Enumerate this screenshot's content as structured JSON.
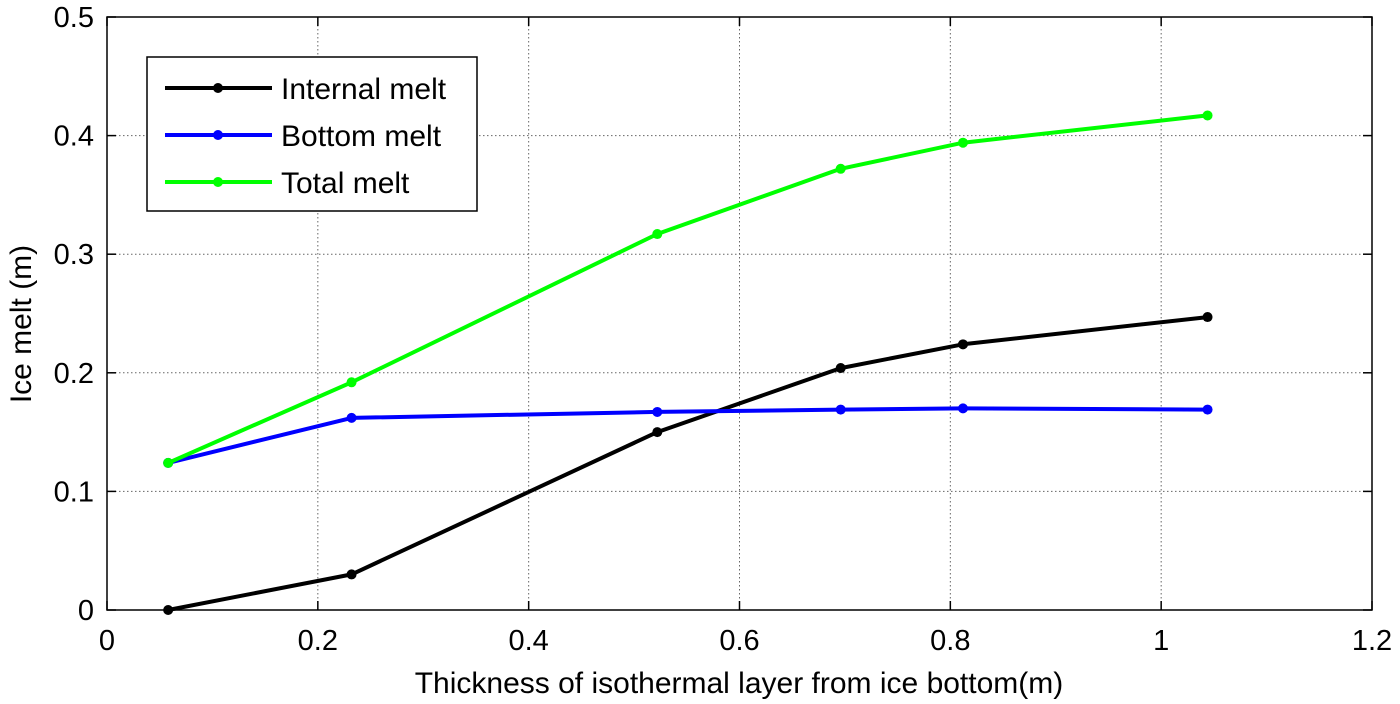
{
  "chart_data": {
    "type": "line",
    "xlabel": "Thickness of isothermal layer from ice bottom(m)",
    "ylabel": "Ice melt (m)",
    "xlim": [
      0,
      1.2
    ],
    "ylim": [
      0,
      0.5
    ],
    "xticks": [
      "0",
      "0.2",
      "0.4",
      "0.6",
      "0.8",
      "1",
      "1.2"
    ],
    "yticks": [
      "0",
      "0.1",
      "0.2",
      "0.3",
      "0.4",
      "0.5"
    ],
    "grid": true,
    "legend_position": "top-left",
    "x": [
      0.058,
      0.232,
      0.522,
      0.696,
      0.812,
      1.044
    ],
    "series": [
      {
        "name": "Internal melt",
        "color": "#000000",
        "values": [
          0.0,
          0.03,
          0.15,
          0.204,
          0.224,
          0.247
        ]
      },
      {
        "name": "Bottom melt",
        "color": "#0000ff",
        "values": [
          0.124,
          0.162,
          0.167,
          0.169,
          0.17,
          0.169
        ]
      },
      {
        "name": "Total melt",
        "color": "#00ff00",
        "values": [
          0.124,
          0.192,
          0.317,
          0.372,
          0.394,
          0.417
        ]
      }
    ]
  }
}
